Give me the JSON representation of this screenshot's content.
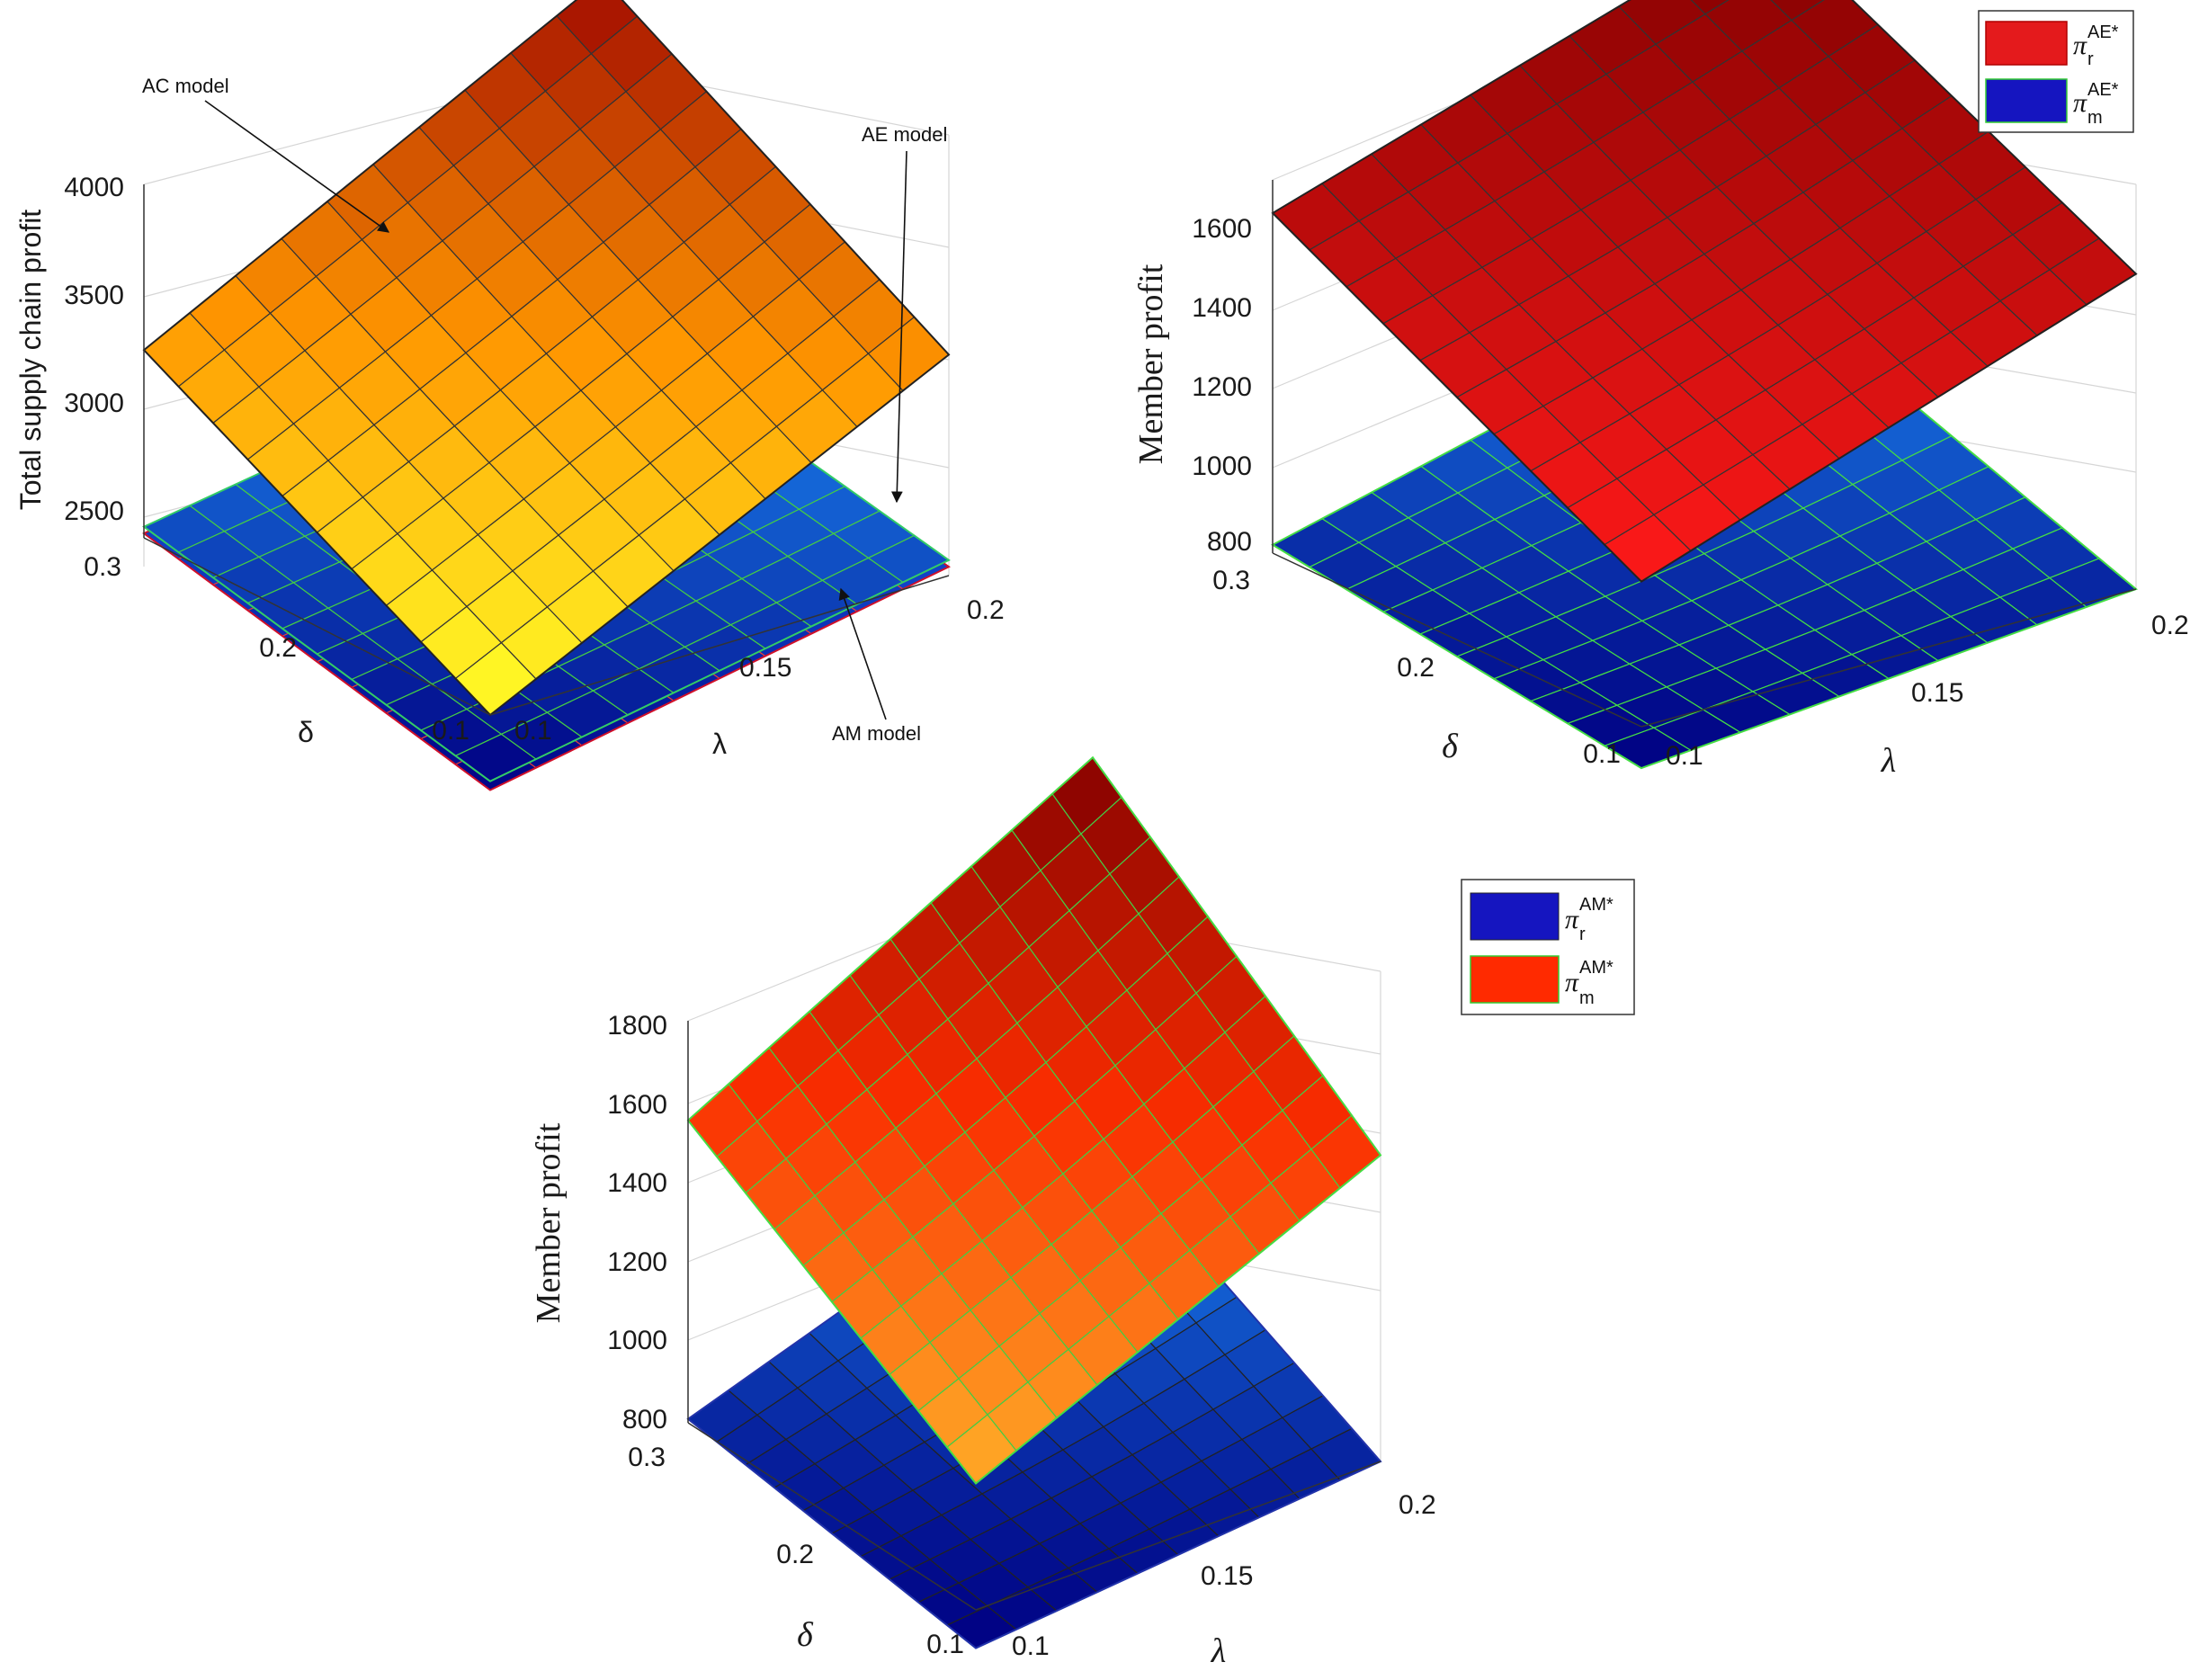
{
  "chart_data": [
    {
      "type": "surface",
      "panel": "top-left",
      "zlabel": "Total supply chain profit",
      "xlabel": "λ",
      "ylabel": "δ",
      "x_ticks": [
        "0.1",
        "0.15",
        "0.2"
      ],
      "y_ticks": [
        "0.1",
        "0.2",
        "0.3"
      ],
      "z_ticks": [
        "2500",
        "3000",
        "3500",
        "4000"
      ],
      "xlim": [
        0.1,
        0.2
      ],
      "ylim": [
        0.1,
        0.3
      ],
      "zlim": [
        2400,
        4000
      ],
      "annotations": [
        {
          "text": "AC model"
        },
        {
          "text": "AE model"
        },
        {
          "text": "AM model"
        }
      ],
      "series": [
        {
          "name": "AC model",
          "corners": {
            "low_low": 2400,
            "low_high": 3250,
            "high_low": 3400,
            "high_high": 4300
          },
          "colormap": "autumn"
        },
        {
          "name": "AE model",
          "corners": {
            "low_low": 2100,
            "low_high": 2450,
            "high_low": 2470,
            "high_high": 2780
          },
          "colormap": "blue"
        },
        {
          "name": "AM model",
          "corners": {
            "low_low": 2060,
            "low_high": 2420,
            "high_low": 2440,
            "high_high": 2740
          },
          "colormap": "blue-red-edge"
        }
      ]
    },
    {
      "type": "surface",
      "panel": "top-right",
      "zlabel": "Member profit",
      "xlabel": "λ",
      "ylabel": "δ",
      "x_ticks": [
        "0.1",
        "0.15",
        "0.2"
      ],
      "y_ticks": [
        "0.1",
        "0.2",
        "0.3"
      ],
      "z_ticks": [
        "800",
        "1000",
        "1200",
        "1400",
        "1600"
      ],
      "xlim": [
        0.1,
        0.2
      ],
      "ylim": [
        0.1,
        0.3
      ],
      "zlim": [
        800,
        1700
      ],
      "legend": [
        {
          "label": "π",
          "sub": "r",
          "sup": "AE*",
          "color": "#e41a1c"
        },
        {
          "label": "π",
          "sub": "m",
          "sup": "AE*",
          "color": "#1515c0"
        }
      ],
      "legend_position": "top-right",
      "series": [
        {
          "name": "πr AE*",
          "corners": {
            "low_low": 1150,
            "low_high": 1620,
            "high_low": 1560,
            "high_high": 2000
          },
          "colormap": "red"
        },
        {
          "name": "πm AE*",
          "corners": {
            "low_low": 700,
            "low_high": 820,
            "high_low": 800,
            "high_high": 1120
          },
          "colormap": "blue"
        }
      ]
    },
    {
      "type": "surface",
      "panel": "bottom",
      "zlabel": "Member profit",
      "xlabel": "λ",
      "ylabel": "δ",
      "x_ticks": [
        "0.1",
        "0.15",
        "0.2"
      ],
      "y_ticks": [
        "0.1",
        "0.2",
        "0.3"
      ],
      "z_ticks": [
        "800",
        "1000",
        "1200",
        "1400",
        "1600",
        "1800"
      ],
      "xlim": [
        0.1,
        0.2
      ],
      "ylim": [
        0.1,
        0.3
      ],
      "zlim": [
        800,
        1800
      ],
      "legend": [
        {
          "label": "π",
          "sub": "r",
          "sup": "AM*",
          "color": "#1515c0"
        },
        {
          "label": "π",
          "sub": "m",
          "sup": "AM*",
          "color": "#ff2a00"
        }
      ],
      "legend_position": "top-right",
      "series": [
        {
          "name": "πm AM*",
          "corners": {
            "low_low": 1130,
            "low_high": 1590,
            "high_low": 1600,
            "high_high": 2150
          },
          "colormap": "orange-red"
        },
        {
          "name": "πr AM*",
          "corners": {
            "low_low": 700,
            "low_high": 810,
            "high_low": 800,
            "high_high": 1170
          },
          "colormap": "blue"
        }
      ]
    }
  ]
}
